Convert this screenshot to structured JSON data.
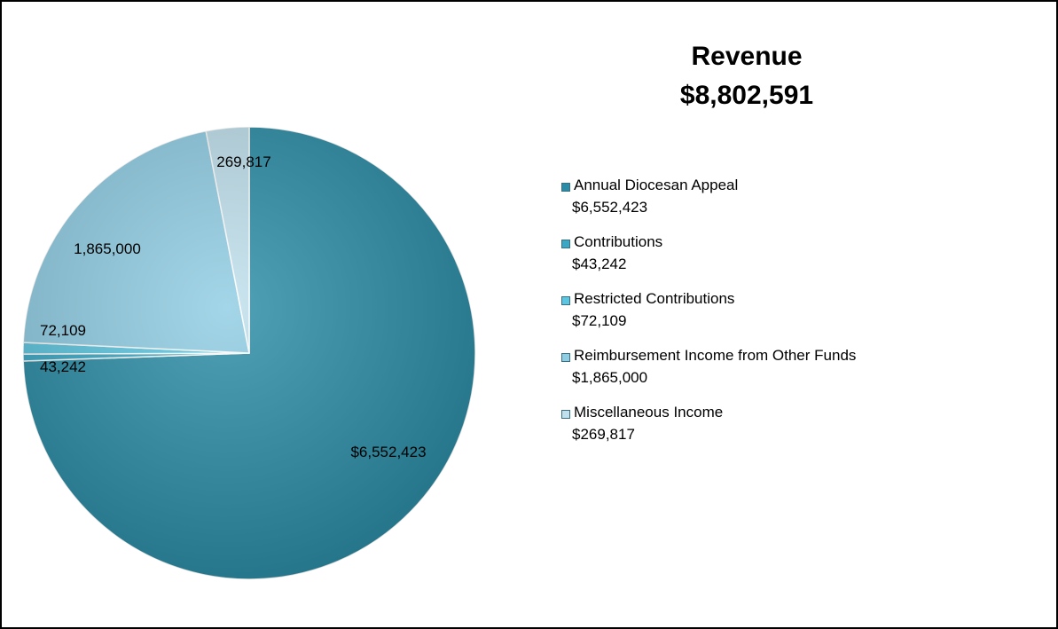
{
  "chart_data": {
    "type": "pie",
    "title": "Revenue",
    "subtitle": "$8,802,591",
    "legend_position": "right",
    "slices": [
      {
        "label": "Annual Diocesan Appeal",
        "value": 6552423,
        "data_label": "$6,552,423",
        "legend_value": "$6,552,423",
        "color": "#2a8ca6"
      },
      {
        "label": "Contributions",
        "value": 43242,
        "data_label": "43,242",
        "legend_value": "$43,242",
        "color": "#3aa8c4"
      },
      {
        "label": "Restricted Contributions",
        "value": 72109,
        "data_label": "72,109",
        "legend_value": "$72,109",
        "color": "#5cc6e0"
      },
      {
        "label": "Reimbursement Income from Other Funds",
        "value": 1865000,
        "data_label": "1,865,000",
        "legend_value": "$1,865,000",
        "color": "#8fcde3"
      },
      {
        "label": "Miscellaneous Income",
        "value": 269817,
        "data_label": "269,817",
        "legend_value": "$269,817",
        "color": "#bfe0ec"
      }
    ]
  }
}
